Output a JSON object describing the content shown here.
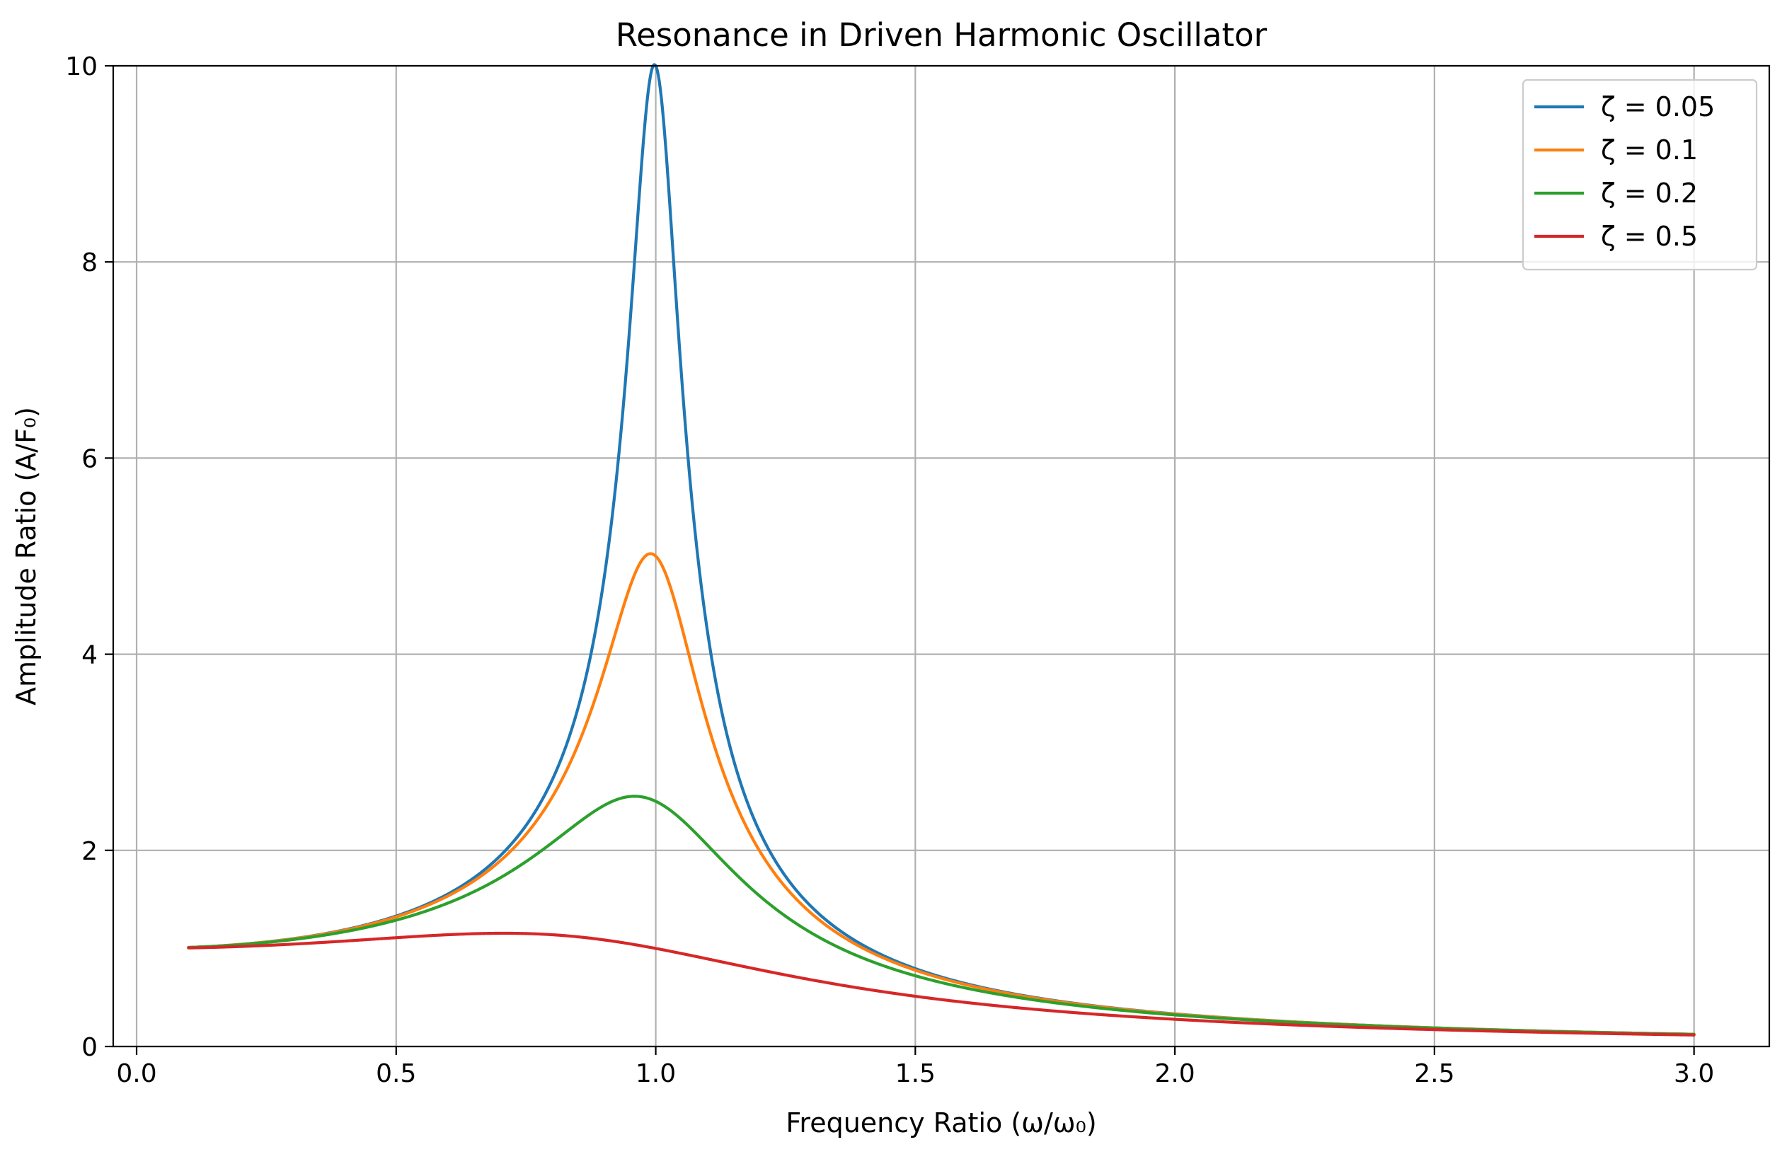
{
  "chart_data": {
    "type": "line",
    "title": "Resonance in Driven Harmonic Oscillator",
    "xlabel": "Frequency Ratio (ω/ω₀)",
    "ylabel": "Amplitude Ratio (A/F₀)",
    "xlim": [
      -0.045,
      3.145
    ],
    "ylim": [
      0,
      10
    ],
    "x_domain": [
      0.1,
      3.0
    ],
    "xticks": [
      0.0,
      0.5,
      1.0,
      1.5,
      2.0,
      2.5,
      3.0
    ],
    "xtick_labels": [
      "0.0",
      "0.5",
      "1.0",
      "1.5",
      "2.0",
      "2.5",
      "3.0"
    ],
    "yticks": [
      0,
      2,
      4,
      6,
      8,
      10
    ],
    "ytick_labels": [
      "0",
      "2",
      "4",
      "6",
      "8",
      "10"
    ],
    "grid": true,
    "legend_position": "top-right",
    "model": "A/F0 = 1 / sqrt((1 - r^2)^2 + (2*zeta*r)^2)",
    "series": [
      {
        "name": "ζ = 0.05",
        "zeta": 0.05,
        "color": "#1f77b4"
      },
      {
        "name": "ζ = 0.1",
        "zeta": 0.1,
        "color": "#ff7f0e"
      },
      {
        "name": "ζ = 0.2",
        "zeta": 0.2,
        "color": "#2ca02c"
      },
      {
        "name": "ζ = 0.5",
        "zeta": 0.5,
        "color": "#d62728"
      }
    ]
  }
}
